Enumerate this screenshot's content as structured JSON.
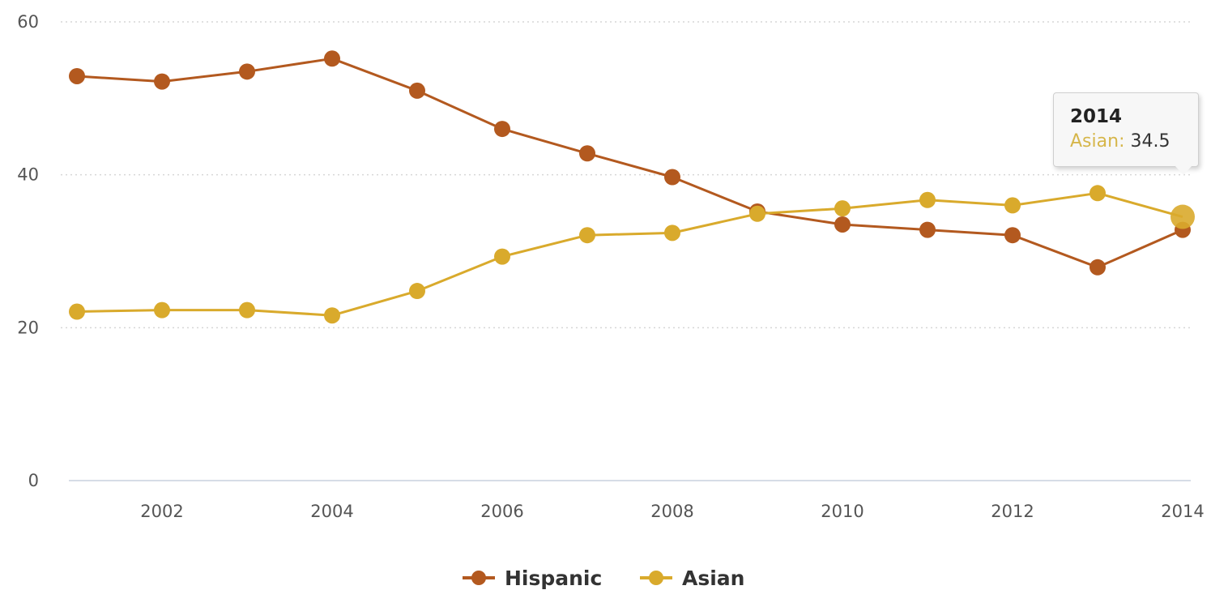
{
  "chart_data": {
    "type": "line",
    "title": "",
    "xlabel": "",
    "ylabel": "",
    "ylim": [
      0,
      60
    ],
    "xlim": [
      2001,
      2014
    ],
    "y_ticks": [
      0,
      20,
      40,
      60
    ],
    "x_ticks": [
      2002,
      2004,
      2006,
      2008,
      2010,
      2012,
      2014
    ],
    "grid": "horizontal dotted",
    "legend_position": "bottom-center",
    "x": [
      2001,
      2002,
      2003,
      2004,
      2005,
      2006,
      2007,
      2008,
      2009,
      2010,
      2011,
      2012,
      2013,
      2014
    ],
    "series": [
      {
        "name": "Hispanic",
        "color": "#b3591f",
        "values": [
          52.9,
          52.2,
          53.5,
          55.2,
          51.0,
          46.0,
          42.8,
          39.7,
          35.2,
          33.5,
          32.8,
          32.1,
          27.9,
          32.8
        ]
      },
      {
        "name": "Asian",
        "color": "#d9aa2c",
        "values": [
          22.1,
          22.3,
          22.3,
          21.6,
          24.8,
          29.3,
          32.1,
          32.4,
          34.9,
          35.6,
          36.7,
          36.0,
          37.6,
          34.5
        ]
      }
    ]
  },
  "tooltip": {
    "title": "2014",
    "series_label": "Asian",
    "value": "34.5"
  }
}
